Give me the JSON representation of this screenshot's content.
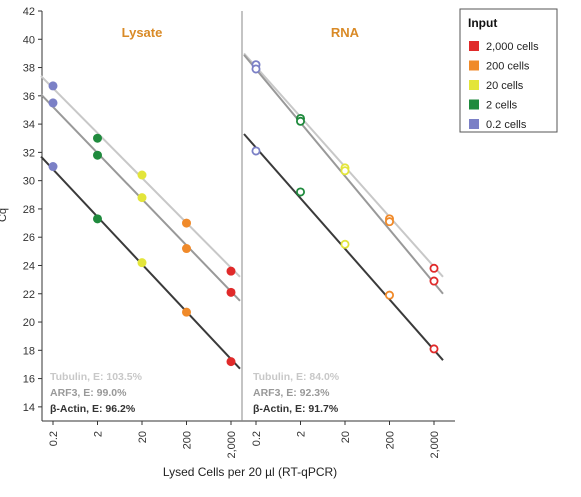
{
  "chart_data": {
    "type": "scatter",
    "ylabel": "Cq",
    "xlabel": "Lysed Cells per 20 µl (RT-qPCR)",
    "x_categories": [
      "0.2",
      "2",
      "20",
      "200",
      "2,000"
    ],
    "ylim": [
      13,
      42
    ],
    "yticks": [
      14,
      16,
      18,
      20,
      22,
      24,
      26,
      28,
      30,
      32,
      34,
      36,
      38,
      40,
      42
    ],
    "grid": false,
    "legend": {
      "title": "Input",
      "position": "top-right",
      "items": [
        {
          "label": "2,000 cells",
          "color": "#e02a2a"
        },
        {
          "label": "200 cells",
          "color": "#f08a2a"
        },
        {
          "label": "20 cells",
          "color": "#e3e53a"
        },
        {
          "label": "2 cells",
          "color": "#1f8a3d"
        },
        {
          "label": "0.2 cells",
          "color": "#7b80c6"
        }
      ]
    },
    "panels": [
      {
        "title": "Lysate",
        "title_color": "#d98a26",
        "marker": "filled",
        "series": [
          {
            "name": "Tubulin",
            "color": "#c8c8c8",
            "points": [
              [
                0.2,
                36.7
              ],
              [
                2,
                33.0
              ],
              [
                20,
                30.4
              ],
              [
                200,
                27.0
              ],
              [
                2000,
                23.6
              ]
            ],
            "line": [
              37.4,
              23.2
            ]
          },
          {
            "name": "ARF3",
            "color": "#999999",
            "points": [
              [
                0.2,
                35.5
              ],
              [
                2,
                31.8
              ],
              [
                20,
                28.8
              ],
              [
                200,
                25.2
              ],
              [
                2000,
                22.1
              ]
            ],
            "line": [
              36.1,
              21.5
            ]
          },
          {
            "name": "β-Actin",
            "color": "#3a3a3a",
            "points": [
              [
                0.2,
                31.0
              ],
              [
                2,
                27.3
              ],
              [
                20,
                24.2
              ],
              [
                200,
                20.7
              ],
              [
                2000,
                17.2
              ]
            ],
            "line": [
              31.7,
              16.7
            ]
          }
        ],
        "annotations": [
          {
            "text": "Tubulin, E: 103.5%",
            "color": "#c8c8c8"
          },
          {
            "text": "ARF3, E: 99.0%",
            "color": "#999999"
          },
          {
            "text": "β-Actin, E: 96.2%",
            "color": "#333333"
          }
        ]
      },
      {
        "title": "RNA",
        "title_color": "#d98a26",
        "marker": "open",
        "series": [
          {
            "name": "Tubulin",
            "color": "#c8c8c8",
            "points": [
              [
                0.2,
                38.2
              ],
              [
                2,
                34.4
              ],
              [
                20,
                30.9
              ],
              [
                200,
                27.3
              ],
              [
                2000,
                23.8
              ]
            ],
            "line": [
              39.0,
              23.2
            ]
          },
          {
            "name": "ARF3",
            "color": "#999999",
            "points": [
              [
                0.2,
                37.9
              ],
              [
                2,
                34.2
              ],
              [
                20,
                30.7
              ],
              [
                200,
                27.1
              ],
              [
                2000,
                22.9
              ]
            ],
            "line": [
              38.9,
              22.0
            ]
          },
          {
            "name": "β-Actin",
            "color": "#3a3a3a",
            "points": [
              [
                0.2,
                32.1
              ],
              [
                2,
                29.2
              ],
              [
                20,
                25.5
              ],
              [
                200,
                21.9
              ],
              [
                2000,
                18.1
              ]
            ],
            "line": [
              33.3,
              17.3
            ]
          }
        ],
        "annotations": [
          {
            "text": "Tubulin, E: 84.0%",
            "color": "#c8c8c8"
          },
          {
            "text": "ARF3, E: 92.3%",
            "color": "#999999"
          },
          {
            "text": "β-Actin, E: 91.7%",
            "color": "#333333"
          }
        ]
      }
    ]
  }
}
